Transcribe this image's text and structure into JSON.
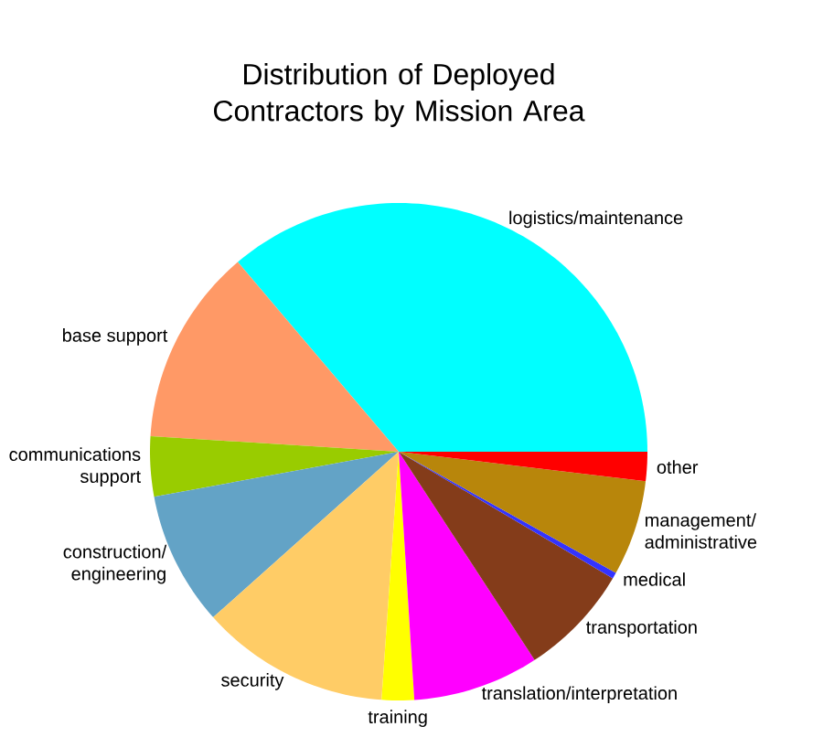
{
  "chart_data": {
    "type": "pie",
    "title": "Distribution of Deployed Contractors by Mission Area",
    "categories": [
      "logistics/maintenance",
      "base support",
      "communications support",
      "construction/ engineering",
      "security",
      "training",
      "translation/interpretation",
      "transportation",
      "medical",
      "management/ administrative",
      "other"
    ],
    "values": [
      36.2,
      12.8,
      3.9,
      8.7,
      12.3,
      2.1,
      8.2,
      7.3,
      0.4,
      6.2,
      1.9
    ],
    "colors": [
      "#00ffff",
      "#ff9966",
      "#99cc00",
      "#63a3c6",
      "#ffcc66",
      "#ffff00",
      "#ff00ff",
      "#843c1a",
      "#3333ff",
      "#b8860b",
      "#ff0000"
    ]
  }
}
